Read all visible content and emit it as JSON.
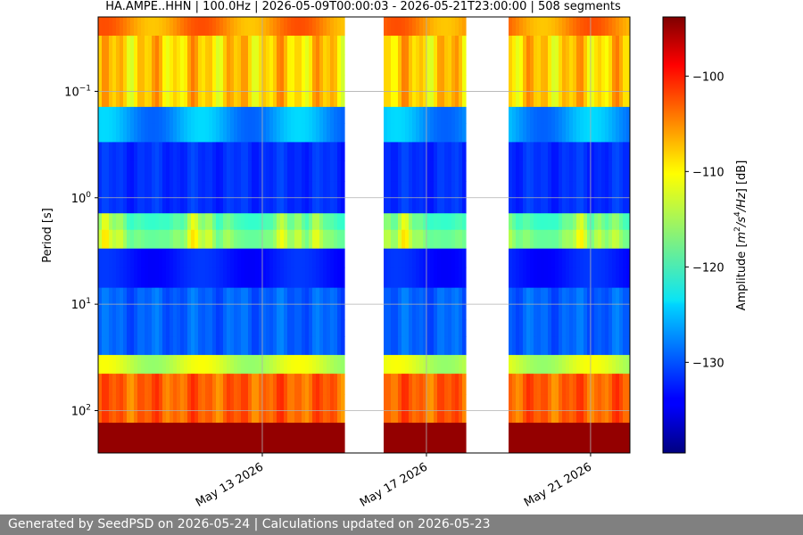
{
  "chart_data": {
    "type": "heatmap",
    "title": "HA.AMPE..HHN | 100.0Hz | 2026-05-09T00:00:03 - 2026-05-21T23:00:00 | 508 segments",
    "ylabel": "Period [s]",
    "ylog": true,
    "ylim_period": [
      0.02,
      250
    ],
    "y_axis_inverted": true,
    "y_ticks": [
      {
        "value": 0.1,
        "base": "10",
        "exp": "−1"
      },
      {
        "value": 1,
        "base": "10",
        "exp": "0"
      },
      {
        "value": 10,
        "base": "10",
        "exp": "1"
      },
      {
        "value": 100,
        "base": "10",
        "exp": "2"
      }
    ],
    "x_range": [
      "2026-05-09T00:00:03",
      "2026-05-21T23:00:00"
    ],
    "x_ticks": [
      "May 13 2026",
      "May 17 2026",
      "May 21 2026"
    ],
    "x_tick_dates": [
      "2026-05-13",
      "2026-05-17",
      "2026-05-21"
    ],
    "data_gaps": [
      {
        "start": "2026-05-15T00:00",
        "end": "2026-05-16T00:00"
      },
      {
        "start": "2026-05-18T00:00",
        "end": "2026-05-19T00:00"
      }
    ],
    "colorbar": {
      "label": "Amplitude [m²/s⁴/Hz] [dB]",
      "label_main": "Amplitude [",
      "label_unit_parts": [
        "m",
        "2",
        "/s",
        "4",
        "/Hz"
      ],
      "label_end": "] [dB]",
      "range": [
        -139.5,
        -93.8
      ],
      "ticks": [
        "−100",
        "−110",
        "−120",
        "−130"
      ],
      "tick_values": [
        -100,
        -110,
        -120,
        -130
      ],
      "colormap": "jet"
    },
    "grid": true,
    "segments": 508
  },
  "footer": {
    "text": "Generated by SeedPSD on 2026-05-24 | Calculations updated on 2026-05-23"
  }
}
